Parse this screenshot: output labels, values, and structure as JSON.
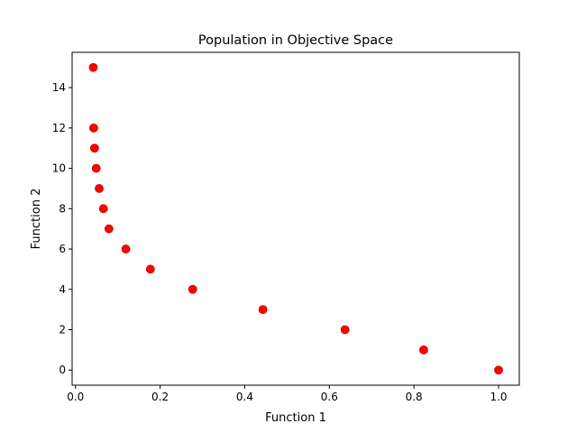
{
  "chart_data": {
    "type": "scatter",
    "title": "Population in Objective Space",
    "xlabel": "Function 1",
    "ylabel": "Function 2",
    "xlim": [
      -0.008,
      1.049
    ],
    "ylim": [
      -0.75,
      15.75
    ],
    "xticks": [
      0.0,
      0.2,
      0.4,
      0.6,
      0.8,
      1.0
    ],
    "xtick_labels": [
      "0.0",
      "0.2",
      "0.4",
      "0.6",
      "0.8",
      "1.0"
    ],
    "yticks": [
      0,
      2,
      4,
      6,
      8,
      10,
      12,
      14
    ],
    "ytick_labels": [
      "0",
      "2",
      "4",
      "6",
      "8",
      "10",
      "12",
      "14"
    ],
    "grid": false,
    "marker_color": "#ff0000",
    "marker_edge_color": "#cc0000",
    "points": [
      {
        "x": 0.042,
        "y": 15
      },
      {
        "x": 0.043,
        "y": 12
      },
      {
        "x": 0.045,
        "y": 11
      },
      {
        "x": 0.049,
        "y": 10
      },
      {
        "x": 0.056,
        "y": 9
      },
      {
        "x": 0.066,
        "y": 8
      },
      {
        "x": 0.079,
        "y": 7
      },
      {
        "x": 0.119,
        "y": 6
      },
      {
        "x": 0.177,
        "y": 5
      },
      {
        "x": 0.277,
        "y": 4
      },
      {
        "x": 0.443,
        "y": 3
      },
      {
        "x": 0.637,
        "y": 2
      },
      {
        "x": 0.823,
        "y": 1
      },
      {
        "x": 1.0,
        "y": 0
      }
    ]
  }
}
